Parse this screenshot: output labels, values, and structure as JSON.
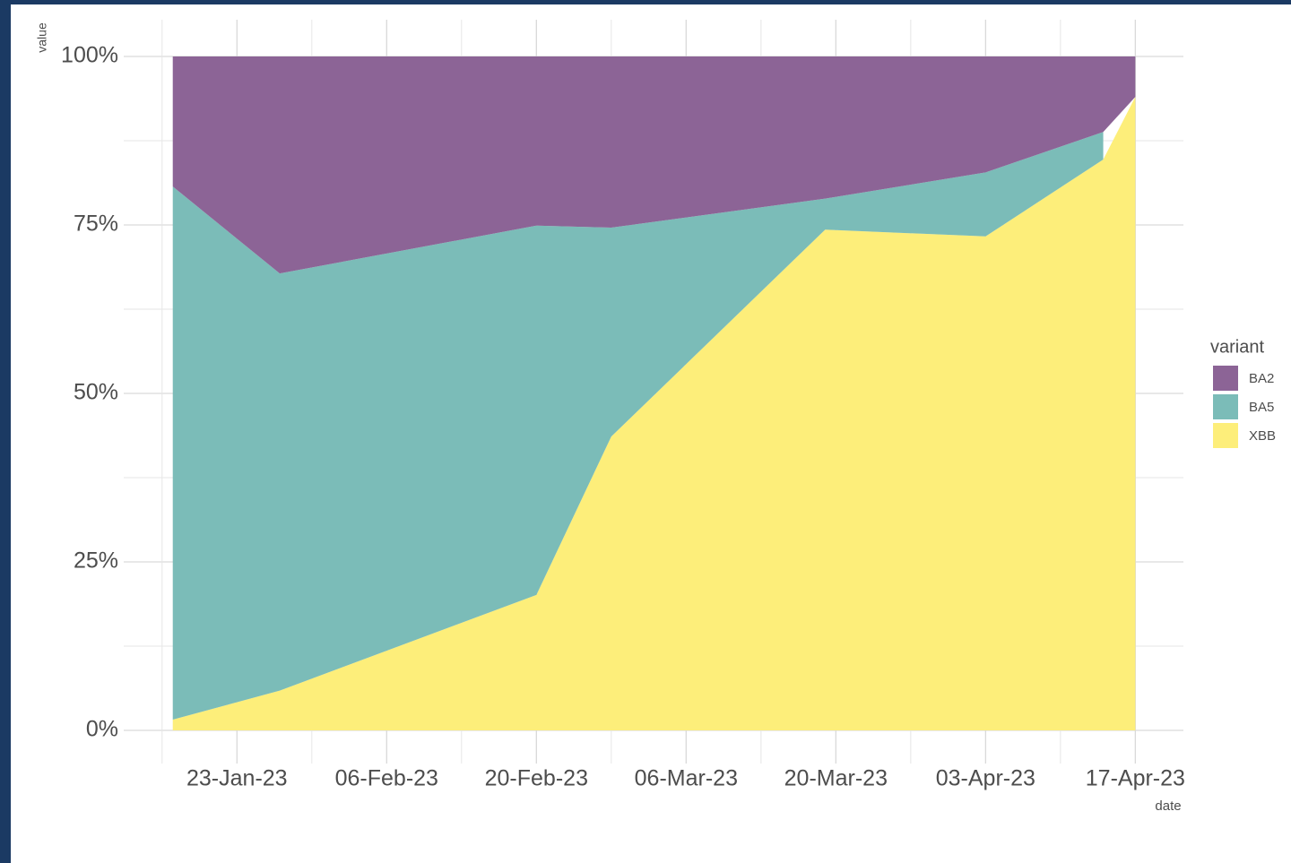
{
  "chart_data": {
    "type": "area",
    "stacked": true,
    "x_label": "date",
    "y_label": "value",
    "legend_title": "variant",
    "legend_position": "right",
    "grid": true,
    "x": [
      "2023-01-17",
      "2023-01-27",
      "2023-02-20",
      "2023-02-27",
      "2023-03-19",
      "2023-04-03",
      "2023-04-14",
      "2023-04-17"
    ],
    "series": [
      {
        "name": "BA2",
        "color": "#8c6496",
        "values": [
          19.3,
          32.2,
          25.1,
          25.4,
          21.1,
          17.2,
          11.2,
          6.0
        ]
      },
      {
        "name": "BA5",
        "color": "#7bbcb8",
        "values": [
          79.1,
          61.9,
          54.8,
          31.0,
          4.6,
          9.5,
          4.1,
          null
        ]
      },
      {
        "name": "XBB",
        "color": "#fdee7a",
        "values": [
          1.6,
          5.9,
          20.1,
          43.6,
          74.3,
          73.3,
          84.7,
          94.0
        ]
      }
    ],
    "xlim": [
      "2023-01-13",
      "2023-04-22"
    ],
    "xticks": [
      {
        "value": "2023-01-23",
        "label": "23-Jan-23"
      },
      {
        "value": "2023-02-06",
        "label": "06-Feb-23"
      },
      {
        "value": "2023-02-20",
        "label": "20-Feb-23"
      },
      {
        "value": "2023-03-06",
        "label": "06-Mar-23"
      },
      {
        "value": "2023-03-20",
        "label": "20-Mar-23"
      },
      {
        "value": "2023-04-03",
        "label": "03-Apr-23"
      },
      {
        "value": "2023-04-17",
        "label": "17-Apr-23"
      }
    ],
    "ylim": [
      0,
      100
    ],
    "yticks": [
      {
        "value": 0,
        "label": "0%"
      },
      {
        "value": 25,
        "label": "25%"
      },
      {
        "value": 50,
        "label": "50%"
      },
      {
        "value": 75,
        "label": "75%"
      },
      {
        "value": 100,
        "label": "100%"
      }
    ]
  }
}
